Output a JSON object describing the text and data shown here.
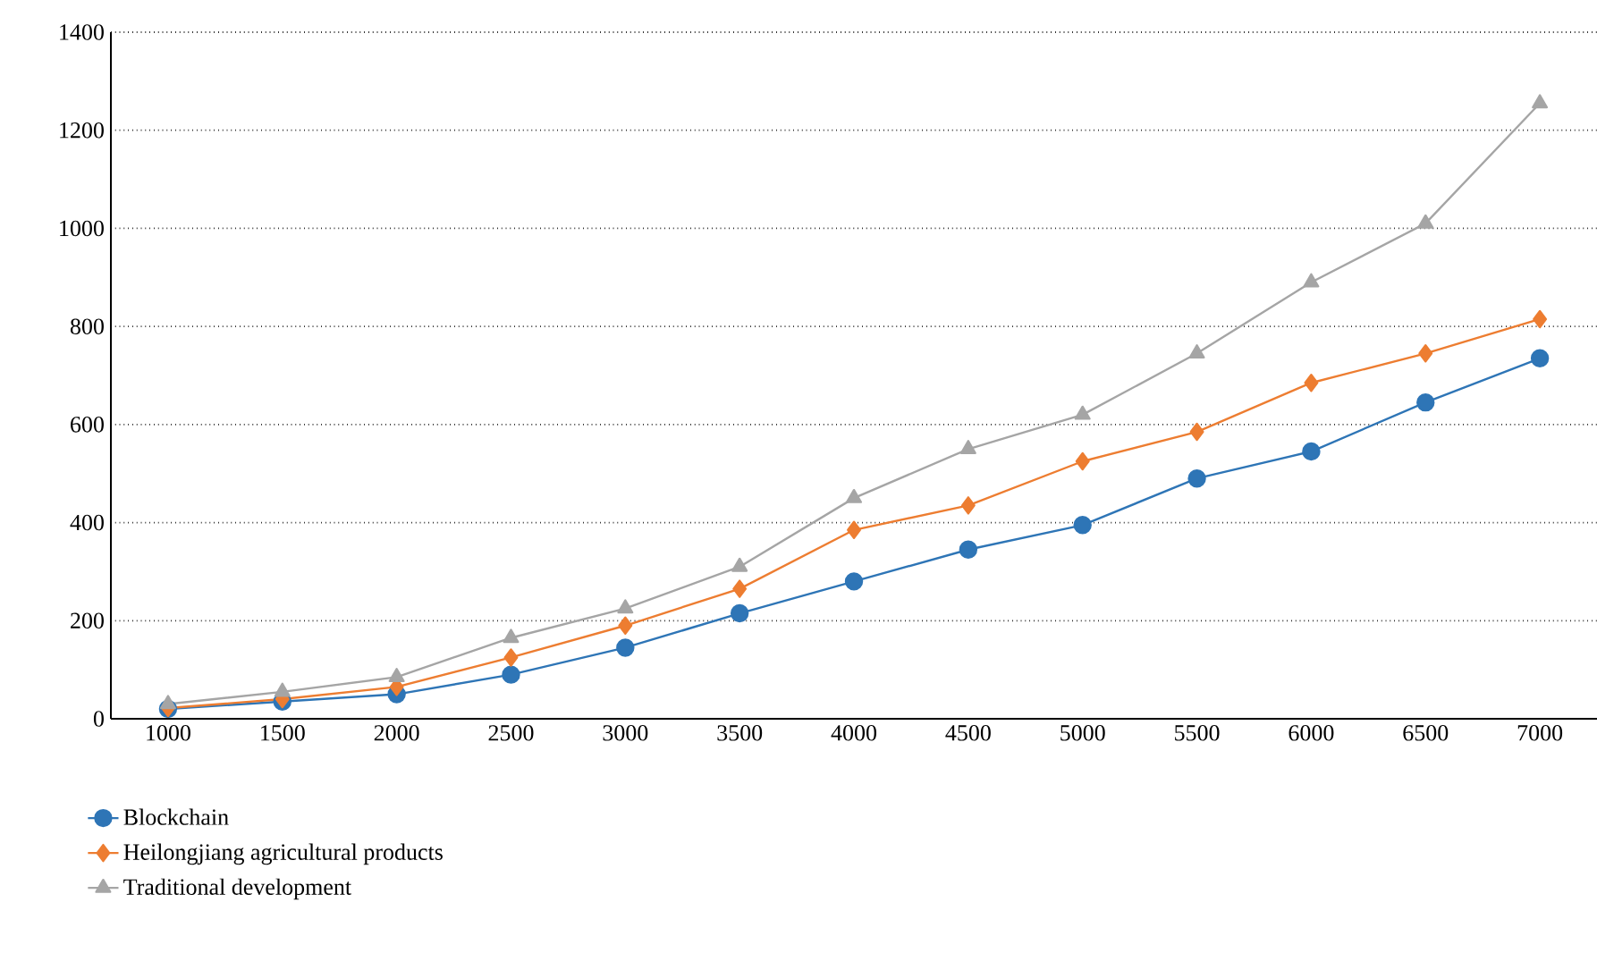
{
  "chart_data": {
    "type": "line",
    "categories": [
      "1000",
      "1500",
      "2000",
      "2500",
      "3000",
      "3500",
      "4000",
      "4500",
      "5000",
      "5500",
      "6000",
      "6500",
      "7000"
    ],
    "series": [
      {
        "name": "Blockchain",
        "color": "#2e75b6",
        "marker": "circle",
        "values": [
          20,
          35,
          50,
          90,
          145,
          215,
          280,
          345,
          395,
          490,
          545,
          645,
          735
        ]
      },
      {
        "name": "Heilongjiang agricultural products",
        "color": "#ed7d31",
        "marker": "diamond",
        "values": [
          22,
          40,
          65,
          125,
          190,
          265,
          385,
          435,
          525,
          585,
          685,
          745,
          815
        ]
      },
      {
        "name": "Traditional development",
        "color": "#a5a5a5",
        "marker": "triangle",
        "values": [
          30,
          55,
          85,
          165,
          225,
          310,
          450,
          550,
          620,
          745,
          890,
          1010,
          1255
        ]
      }
    ],
    "ylim": [
      0,
      1400
    ],
    "yticks": [
      0,
      200,
      400,
      600,
      800,
      1000,
      1200,
      1400
    ],
    "grid": "y",
    "legend": "bottom left"
  }
}
